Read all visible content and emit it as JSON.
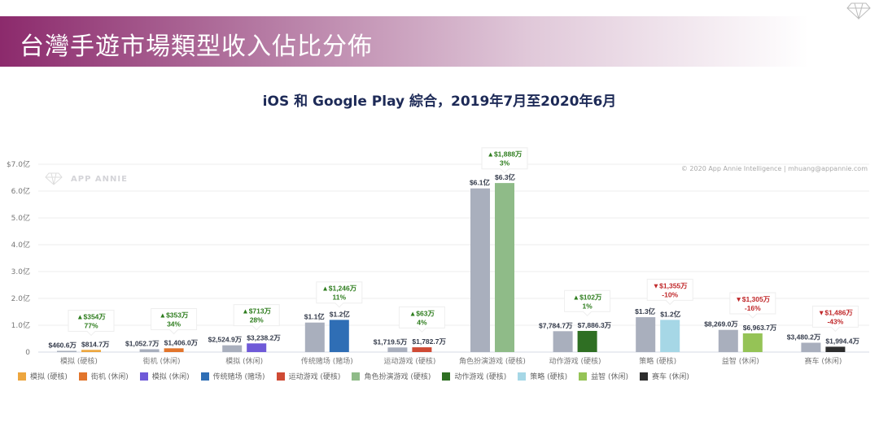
{
  "header": {
    "title": "台灣手遊市場類型收入佔比分佈"
  },
  "chart_data": {
    "type": "bar",
    "title": "iOS 和 Google Play 綜合，2019年7月至2020年6月",
    "unit": "亿 USD",
    "ylim": [
      0,
      7
    ],
    "yticks": [
      "0",
      "1.0亿",
      "2.0亿",
      "3.0亿",
      "4.0亿",
      "5.0亿",
      "6.0亿",
      "$7.0亿"
    ],
    "grid": true,
    "legend_position": "bottom",
    "watermark": "APP ANNIE",
    "credit": "© 2020 App Annie Intelligence | mhuang@appannie.com",
    "prior_color": "#a9afbd",
    "categories": [
      "模拟 (硬核)",
      "街机 (休闲)",
      "模拟 (休闲)",
      "传统赌场 (赌场)",
      "运动游戏 (硬核)",
      "角色扮演游戏 (硬核)",
      "动作游戏 (硬核)",
      "策略 (硬核)",
      "益智 (休闲)",
      "赛车 (休闲)"
    ],
    "colors": [
      "#eda63f",
      "#e2752c",
      "#6f5ad8",
      "#2f6eb5",
      "#cf4a34",
      "#8fbb88",
      "#2f6f23",
      "#a6d7e6",
      "#95c356",
      "#2d2d2d"
    ],
    "prior_values": [
      0.04606,
      0.10527,
      0.25249,
      1.1,
      0.17195,
      6.1,
      0.77847,
      1.3,
      0.8269,
      0.34802
    ],
    "current_values": [
      0.08147,
      0.1406,
      0.32382,
      1.2,
      0.17827,
      6.3,
      0.78863,
      1.2,
      0.69637,
      0.19944
    ],
    "prior_labels": [
      "$460.6万",
      "$1,052.7万",
      "$2,524.9万",
      "$1.1亿",
      "$1,719.5万",
      "$6.1亿",
      "$7,784.7万",
      "$1.3亿",
      "$8,269.0万",
      "$3,480.2万"
    ],
    "current_labels": [
      "$814.7万",
      "$1,406.0万",
      "$3,238.2万",
      "$1.2亿",
      "$1,782.7万",
      "$6.3亿",
      "$7,886.3万",
      "$1.2亿",
      "$6,963.7万",
      "$1,994.4万"
    ],
    "change": [
      {
        "dir": "up",
        "amount": "▲$354万",
        "pct": "77%"
      },
      {
        "dir": "up",
        "amount": "▲$353万",
        "pct": "34%"
      },
      {
        "dir": "up",
        "amount": "▲$713万",
        "pct": "28%"
      },
      {
        "dir": "up",
        "amount": "▲$1,246万",
        "pct": "11%"
      },
      {
        "dir": "up",
        "amount": "▲$63万",
        "pct": "4%"
      },
      {
        "dir": "up",
        "amount": "▲$1,888万",
        "pct": "3%"
      },
      {
        "dir": "up",
        "amount": "▲$102万",
        "pct": "1%"
      },
      {
        "dir": "down",
        "amount": "▼$1,355万",
        "pct": "-10%"
      },
      {
        "dir": "down",
        "amount": "▼$1,305万",
        "pct": "-16%"
      },
      {
        "dir": "down",
        "amount": "▼$1,486万",
        "pct": "-43%"
      }
    ],
    "change_colors": {
      "up": "#2e7d1e",
      "down": "#c0282a"
    }
  }
}
